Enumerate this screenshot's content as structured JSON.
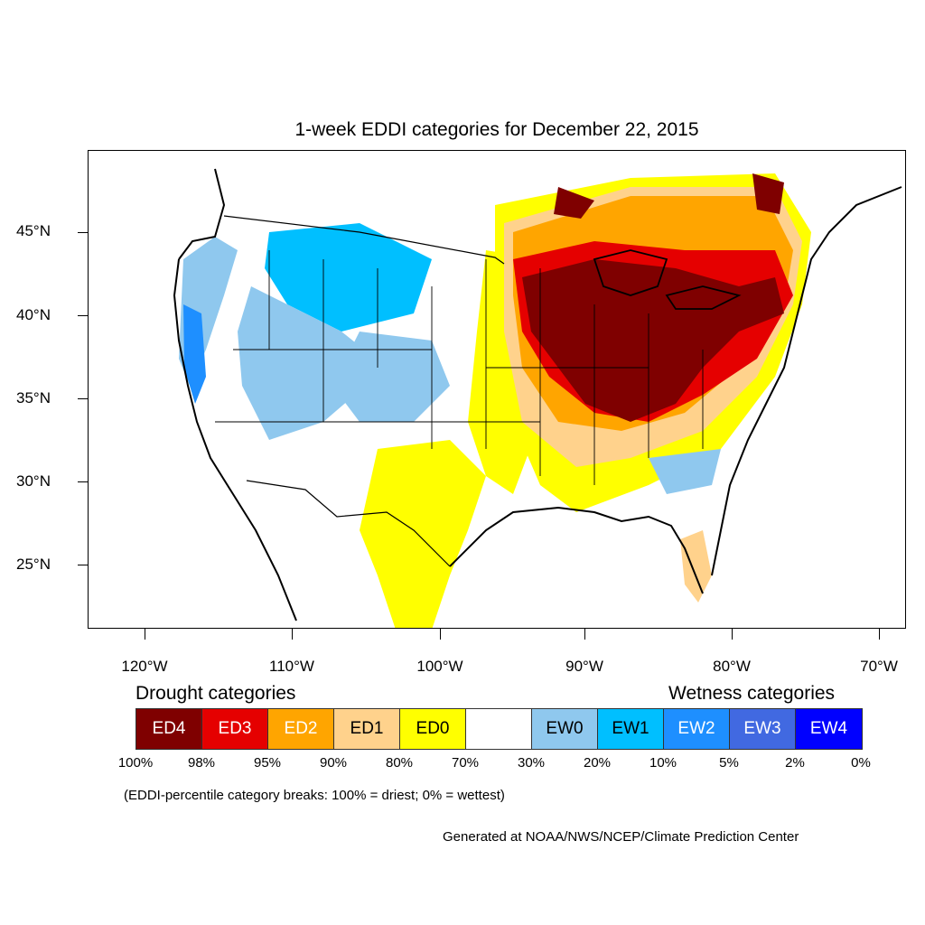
{
  "title": "1-week EDDI categories for December 22, 2015",
  "axes": {
    "lat_labels": [
      "45°N",
      "40°N",
      "35°N",
      "30°N",
      "25°N"
    ],
    "lon_labels": [
      "120°W",
      "110°W",
      "100°W",
      "90°W",
      "80°W",
      "70°W"
    ]
  },
  "legend": {
    "drought_heading": "Drought categories",
    "wetness_heading": "Wetness categories",
    "categories": [
      {
        "label": "ED4",
        "color": "#7f0000",
        "text_color": "#ffffff"
      },
      {
        "label": "ED3",
        "color": "#e50000",
        "text_color": "#ffffff"
      },
      {
        "label": "ED2",
        "color": "#ffa500",
        "text_color": "#ffffff"
      },
      {
        "label": "ED1",
        "color": "#ffd28c",
        "text_color": "#000000"
      },
      {
        "label": "ED0",
        "color": "#ffff00",
        "text_color": "#000000"
      },
      {
        "label": "",
        "color": "#ffffff",
        "text_color": "#000000"
      },
      {
        "label": "EW0",
        "color": "#8fc8ee",
        "text_color": "#000000"
      },
      {
        "label": "EW1",
        "color": "#00bfff",
        "text_color": "#000000"
      },
      {
        "label": "EW2",
        "color": "#1e8fff",
        "text_color": "#ffffff"
      },
      {
        "label": "EW3",
        "color": "#4169e1",
        "text_color": "#ffffff"
      },
      {
        "label": "EW4",
        "color": "#0000ff",
        "text_color": "#ffffff"
      }
    ],
    "breaks": [
      "100%",
      "98%",
      "95%",
      "90%",
      "80%",
      "70%",
      "30%",
      "20%",
      "10%",
      "5%",
      "2%",
      "0%"
    ],
    "note": "(EDDI-percentile category breaks: 100% = driest; 0% = wettest)"
  },
  "credit": "Generated at NOAA/NWS/NCEP/Climate Prediction Center"
}
